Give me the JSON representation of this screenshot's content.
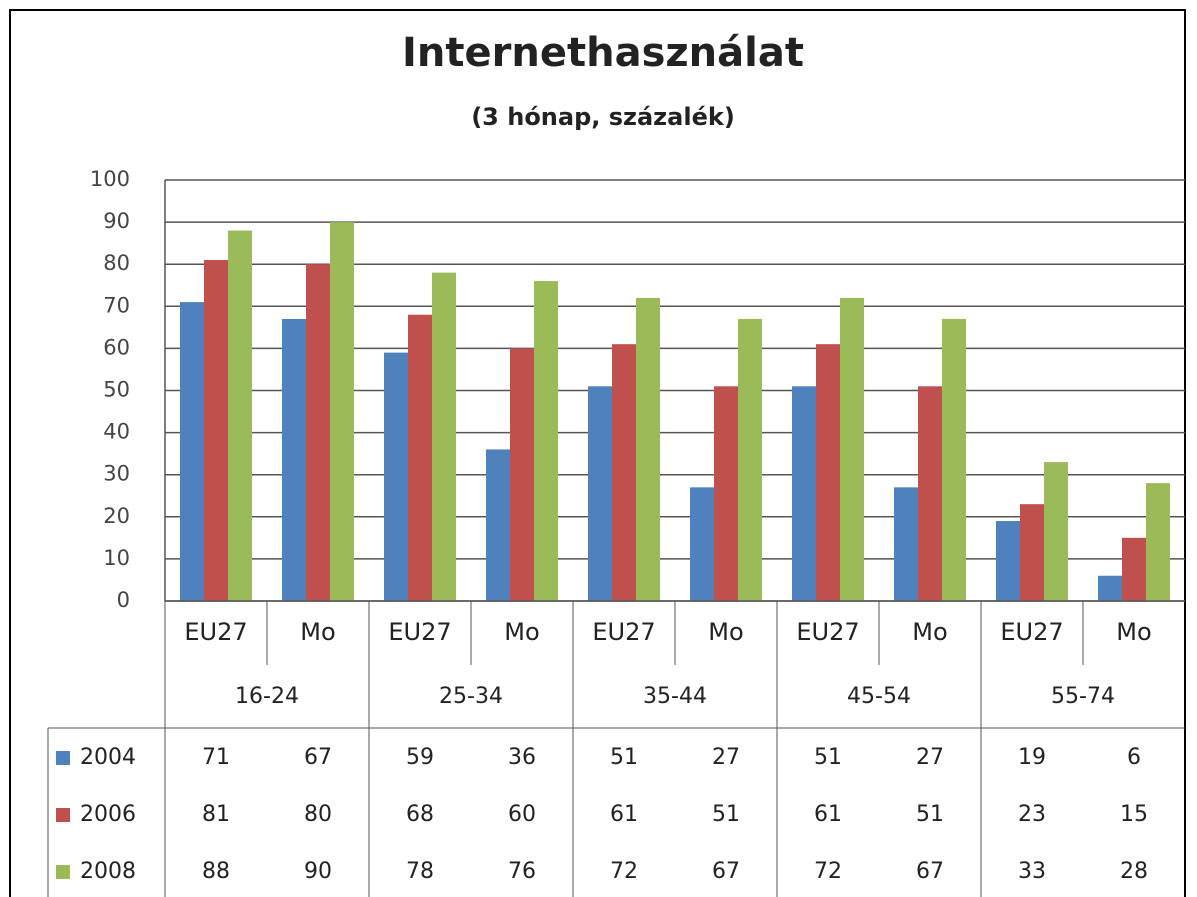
{
  "chart_data": {
    "type": "bar",
    "title": "Internethasználat",
    "subtitle": "(3 hónap, százalék)",
    "categories": [
      "EU27",
      "Mo",
      "EU27",
      "Mo",
      "EU27",
      "Mo",
      "EU27",
      "Mo",
      "EU27",
      "Mo"
    ],
    "groups": [
      "16-24",
      "25-34",
      "35-44",
      "45-54",
      "55-74"
    ],
    "series": [
      {
        "name": "2004",
        "color": "#4f81bd",
        "values": [
          71,
          67,
          59,
          36,
          51,
          27,
          51,
          27,
          19,
          6
        ]
      },
      {
        "name": "2006",
        "color": "#c0504d",
        "values": [
          81,
          80,
          68,
          60,
          61,
          51,
          61,
          51,
          23,
          15
        ]
      },
      {
        "name": "2008",
        "color": "#9bbb59",
        "values": [
          88,
          90,
          78,
          76,
          72,
          67,
          72,
          67,
          33,
          28
        ]
      }
    ],
    "ylim": [
      0,
      100
    ],
    "yticks": [
      0,
      10,
      20,
      30,
      40,
      50,
      60,
      70,
      80,
      90,
      100
    ],
    "grid": true
  }
}
